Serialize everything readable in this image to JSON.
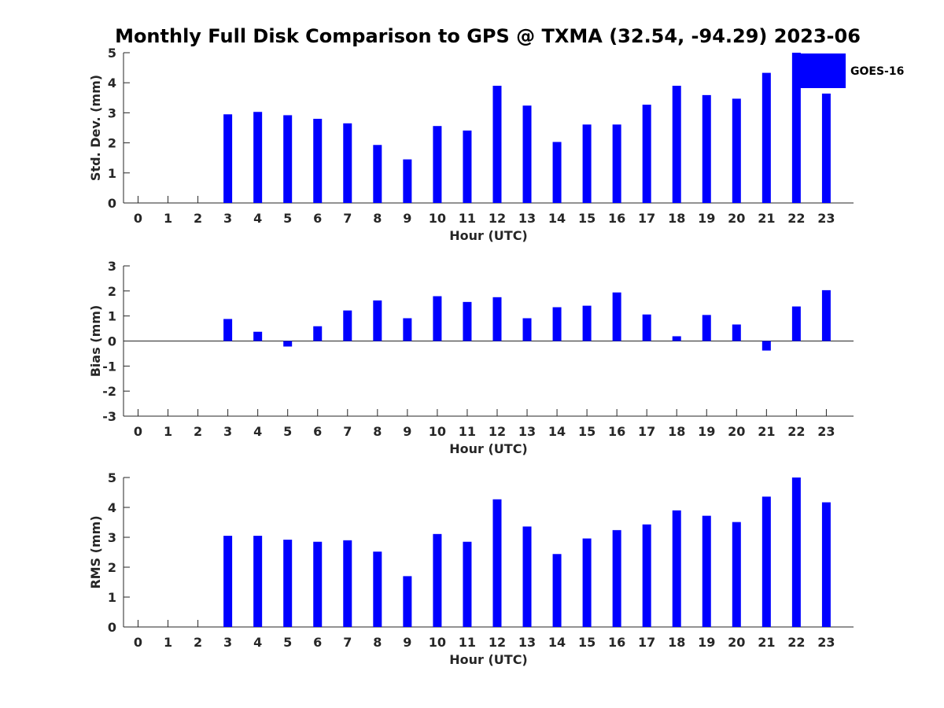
{
  "title": "Monthly Full Disk Comparison to GPS @ TXMA (32.54, -94.29) 2023-06",
  "legend": {
    "label": "GOES-16",
    "color": "#0000ff"
  },
  "chart_data": [
    {
      "type": "bar",
      "xlabel": "Hour (UTC)",
      "ylabel": "Std. Dev. (mm)",
      "categories": [
        "0",
        "1",
        "2",
        "3",
        "4",
        "5",
        "6",
        "7",
        "8",
        "9",
        "10",
        "11",
        "12",
        "13",
        "14",
        "15",
        "16",
        "17",
        "18",
        "19",
        "20",
        "21",
        "22",
        "23"
      ],
      "series": [
        {
          "name": "GOES-16",
          "color": "#0000ff",
          "values": [
            null,
            null,
            null,
            2.95,
            3.03,
            2.92,
            2.8,
            2.65,
            1.93,
            1.45,
            2.56,
            2.41,
            3.9,
            3.24,
            2.03,
            2.61,
            2.61,
            3.27,
            3.9,
            3.59,
            3.47,
            4.33,
            5.0,
            3.64
          ]
        }
      ],
      "ylim": [
        0,
        5
      ],
      "yticks": [
        0,
        1,
        2,
        3,
        4,
        5
      ],
      "legend_position": "top-right"
    },
    {
      "type": "bar",
      "xlabel": "Hour (UTC)",
      "ylabel": "Bias (mm)",
      "categories": [
        "0",
        "1",
        "2",
        "3",
        "4",
        "5",
        "6",
        "7",
        "8",
        "9",
        "10",
        "11",
        "12",
        "13",
        "14",
        "15",
        "16",
        "17",
        "18",
        "19",
        "20",
        "21",
        "22",
        "23"
      ],
      "series": [
        {
          "name": "GOES-16",
          "color": "#0000ff",
          "values": [
            null,
            null,
            null,
            0.88,
            0.37,
            -0.22,
            0.59,
            1.22,
            1.62,
            0.91,
            1.79,
            1.56,
            1.75,
            0.91,
            1.35,
            1.41,
            1.94,
            1.06,
            0.19,
            1.04,
            0.66,
            -0.38,
            1.38,
            2.03
          ]
        }
      ],
      "ylim": [
        -3,
        3
      ],
      "yticks": [
        -3,
        -2,
        -1,
        0,
        1,
        2,
        3
      ]
    },
    {
      "type": "bar",
      "xlabel": "Hour (UTC)",
      "ylabel": "RMS (mm)",
      "categories": [
        "0",
        "1",
        "2",
        "3",
        "4",
        "5",
        "6",
        "7",
        "8",
        "9",
        "10",
        "11",
        "12",
        "13",
        "14",
        "15",
        "16",
        "17",
        "18",
        "19",
        "20",
        "21",
        "22",
        "23"
      ],
      "series": [
        {
          "name": "GOES-16",
          "color": "#0000ff",
          "values": [
            null,
            null,
            null,
            3.05,
            3.05,
            2.92,
            2.85,
            2.9,
            2.52,
            1.7,
            3.11,
            2.85,
            4.27,
            3.36,
            2.44,
            2.96,
            3.24,
            3.43,
            3.9,
            3.72,
            3.51,
            4.36,
            5.0,
            4.17
          ]
        }
      ],
      "ylim": [
        0,
        5
      ],
      "yticks": [
        0,
        1,
        2,
        3,
        4,
        5
      ]
    }
  ]
}
